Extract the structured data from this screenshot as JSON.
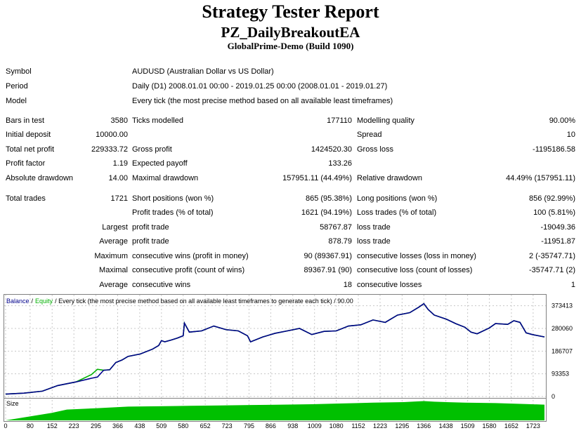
{
  "header": {
    "title": "Strategy Tester Report",
    "ea_name": "PZ_DailyBreakoutEA",
    "server": "GlobalPrime-Demo (Build 1090)"
  },
  "info": [
    {
      "label": "Symbol",
      "value": "AUDUSD (Australian Dollar vs US Dollar)"
    },
    {
      "label": "Period",
      "value": "Daily (D1) 2008.01.01 00:00 - 2019.01.25 00:00 (2008.01.01 - 2019.01.27)"
    },
    {
      "label": "Model",
      "value": "Every tick (the most precise method based on all available least timeframes)"
    }
  ],
  "stats": {
    "bars_in_test": {
      "label": "Bars in test",
      "value": "3580"
    },
    "ticks_modelled": {
      "label": "Ticks modelled",
      "value": "177110"
    },
    "modelling_quality": {
      "label": "Modelling quality",
      "value": "90.00%"
    },
    "initial_deposit": {
      "label": "Initial deposit",
      "value": "10000.00"
    },
    "spread": {
      "label": "Spread",
      "value": "10"
    },
    "total_net_profit": {
      "label": "Total net profit",
      "value": "229333.72"
    },
    "gross_profit": {
      "label": "Gross profit",
      "value": "1424520.30"
    },
    "gross_loss": {
      "label": "Gross loss",
      "value": "-1195186.58"
    },
    "profit_factor": {
      "label": "Profit factor",
      "value": "1.19"
    },
    "expected_payoff": {
      "label": "Expected payoff",
      "value": "133.26"
    },
    "absolute_drawdown": {
      "label": "Absolute drawdown",
      "value": "14.00"
    },
    "maximal_drawdown": {
      "label": "Maximal drawdown",
      "value": "157951.11 (44.49%)"
    },
    "relative_drawdown": {
      "label": "Relative drawdown",
      "value": "44.49% (157951.11)"
    },
    "total_trades": {
      "label": "Total trades",
      "value": "1721"
    },
    "short_positions": {
      "label": "Short positions (won %)",
      "value": "865 (95.38%)"
    },
    "long_positions": {
      "label": "Long positions (won %)",
      "value": "856 (92.99%)"
    },
    "profit_trades": {
      "label": "Profit trades (% of total)",
      "value": "1621 (94.19%)"
    },
    "loss_trades": {
      "label": "Loss trades (% of total)",
      "value": "100 (5.81%)"
    }
  },
  "trade_rows": [
    {
      "prefix": "Largest",
      "l1": "profit trade",
      "v1": "58767.87",
      "l2": "loss trade",
      "v2": "-19049.36"
    },
    {
      "prefix": "Average",
      "l1": "profit trade",
      "v1": "878.79",
      "l2": "loss trade",
      "v2": "-11951.87"
    },
    {
      "prefix": "Maximum",
      "l1": "consecutive wins (profit in money)",
      "v1": "90 (89367.91)",
      "l2": "consecutive losses (loss in money)",
      "v2": "2 (-35747.71)"
    },
    {
      "prefix": "Maximal",
      "l1": "consecutive profit (count of wins)",
      "v1": "89367.91 (90)",
      "l2": "consecutive loss (count of losses)",
      "v2": "-35747.71 (2)"
    },
    {
      "prefix": "Average",
      "l1": "consecutive wins",
      "v1": "18",
      "l2": "consecutive losses",
      "v2": "1"
    }
  ],
  "chart": {
    "legend_balance": "Balance",
    "legend_sep1": "/",
    "legend_equity": "Equity",
    "legend_rest": "/ Every tick (the most precise method based on all available least timeframes to generate each tick) / 90.00",
    "size_label": "Size",
    "colors": {
      "balance": "#00008b",
      "equity": "#00b000",
      "size": "#00c000"
    }
  },
  "chart_data": {
    "type": "line",
    "series": [
      {
        "name": "Balance",
        "x": [
          0,
          60,
          120,
          170,
          230,
          280,
          300,
          320,
          340,
          360,
          380,
          400,
          440,
          480,
          500,
          509,
          520,
          540,
          560,
          580,
          584,
          600,
          640,
          680,
          720,
          760,
          790,
          800,
          840,
          880,
          920,
          960,
          1000,
          1040,
          1080,
          1120,
          1160,
          1200,
          1240,
          1280,
          1320,
          1350,
          1366,
          1380,
          1400,
          1440,
          1470,
          1500,
          1520,
          1540,
          1580,
          1600,
          1640,
          1660,
          1680,
          1700,
          1720,
          1760
        ],
        "y": [
          10000,
          14000,
          22000,
          45000,
          60000,
          75000,
          80000,
          108000,
          110000,
          140000,
          150000,
          165000,
          175000,
          195000,
          210000,
          230000,
          225000,
          232000,
          240000,
          250000,
          302000,
          265000,
          270000,
          290000,
          275000,
          270000,
          250000,
          225000,
          245000,
          260000,
          270000,
          280000,
          255000,
          268000,
          270000,
          290000,
          295000,
          315000,
          305000,
          335000,
          345000,
          368000,
          382000,
          358000,
          335000,
          318000,
          300000,
          285000,
          265000,
          258000,
          282000,
          300000,
          297000,
          312000,
          305000,
          262000,
          255000,
          245000
        ]
      },
      {
        "name": "Equity",
        "x": [
          0,
          60,
          120,
          170,
          230,
          280,
          300,
          320,
          340,
          360,
          380,
          400,
          440,
          480,
          500,
          509,
          520,
          540,
          560,
          580,
          584,
          600,
          640,
          680,
          720,
          760,
          790,
          800,
          840,
          880,
          920,
          960,
          1000,
          1040,
          1080,
          1120,
          1160,
          1200,
          1240,
          1280,
          1320,
          1350,
          1366,
          1380,
          1400,
          1440,
          1470,
          1500,
          1520,
          1540,
          1580,
          1600,
          1640,
          1660,
          1680,
          1700,
          1720,
          1760
        ],
        "y": [
          10000,
          14000,
          22000,
          45000,
          60000,
          90000,
          112000,
          108000,
          110000,
          140000,
          150000,
          165000,
          175000,
          195000,
          210000,
          230000,
          225000,
          232000,
          240000,
          250000,
          302000,
          265000,
          270000,
          290000,
          275000,
          270000,
          250000,
          225000,
          245000,
          260000,
          270000,
          280000,
          255000,
          268000,
          270000,
          290000,
          295000,
          315000,
          305000,
          335000,
          345000,
          368000,
          382000,
          358000,
          335000,
          318000,
          300000,
          285000,
          265000,
          258000,
          282000,
          300000,
          297000,
          312000,
          305000,
          262000,
          255000,
          245000
        ]
      }
    ],
    "size_series": {
      "x": [
        0,
        150,
        200,
        300,
        400,
        500,
        600,
        700,
        800,
        900,
        1000,
        1100,
        1200,
        1300,
        1366,
        1400,
        1500,
        1600,
        1700,
        1760
      ],
      "y": [
        0,
        0.38,
        0.55,
        0.62,
        0.7,
        0.72,
        0.74,
        0.76,
        0.78,
        0.8,
        0.82,
        0.86,
        0.9,
        0.93,
        0.98,
        0.95,
        0.9,
        0.88,
        0.83,
        0.8
      ]
    },
    "y_ticks": [
      0,
      93353,
      186707,
      280060,
      373413
    ],
    "x_ticks": [
      0,
      80,
      152,
      223,
      295,
      366,
      438,
      509,
      580,
      652,
      723,
      795,
      866,
      938,
      1009,
      1080,
      1152,
      1223,
      1295,
      1366,
      1438,
      1509,
      1580,
      1652,
      1723
    ],
    "ylim": [
      0,
      410000
    ],
    "xlim": [
      0,
      1760
    ]
  }
}
